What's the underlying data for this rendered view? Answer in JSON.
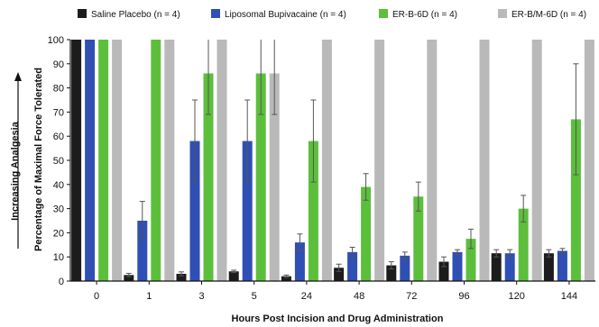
{
  "chart_data": {
    "type": "bar",
    "title": "",
    "xlabel": "Hours Post Incision and Drug Administration",
    "ylabel": "Percentage of Maximal Force Tolerated",
    "side_label": "Increasing Analgesia",
    "ylim": [
      0,
      100
    ],
    "yticks": [
      0,
      10,
      20,
      30,
      40,
      50,
      60,
      70,
      80,
      90,
      100
    ],
    "grid": false,
    "legend_position": "top",
    "categories": [
      "0",
      "1",
      "3",
      "5",
      "24",
      "48",
      "72",
      "96",
      "120",
      "144"
    ],
    "series": [
      {
        "name": "Saline Placebo (n = 4)",
        "color": "#1c1c1c",
        "values": [
          100,
          2.5,
          3,
          4,
          2,
          5.5,
          6.5,
          8,
          11.5,
          11.5
        ],
        "errors": [
          0,
          0.7,
          0.8,
          0.5,
          0.5,
          1.5,
          1.5,
          2,
          1.5,
          1.5
        ]
      },
      {
        "name": "Liposomal Bupivacaine (n = 4)",
        "color": "#2f4fb5",
        "values": [
          100,
          25,
          58,
          58,
          16,
          12,
          10.5,
          12,
          11.5,
          12.5
        ],
        "errors": [
          0,
          8,
          17,
          17,
          3.5,
          2,
          1.5,
          1,
          1.5,
          1
        ]
      },
      {
        "name": "ER-B-6D (n = 4)",
        "color": "#5cbf3c",
        "values": [
          100,
          100,
          86,
          86,
          58,
          39,
          35,
          17.5,
          30,
          67
        ],
        "errors": [
          0,
          0,
          17,
          17,
          17,
          5.5,
          6,
          4,
          5.5,
          23
        ]
      },
      {
        "name": "ER-B/M-6D (n = 4)",
        "color": "#b9b9b9",
        "values": [
          100,
          100,
          100,
          86,
          100,
          100,
          100,
          100,
          100,
          100
        ],
        "errors": [
          0,
          0,
          0,
          17,
          0,
          0,
          0,
          0,
          0,
          0
        ]
      }
    ]
  }
}
